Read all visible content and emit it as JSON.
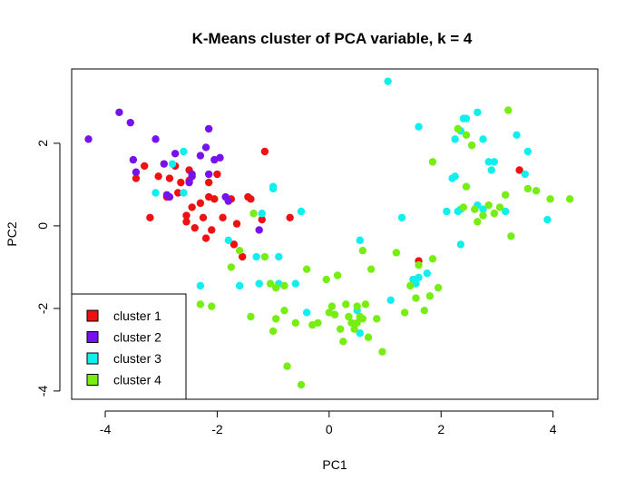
{
  "chart_data": {
    "type": "scatter",
    "title": "K-Means cluster of PCA variable, k = 4",
    "xlabel": "PC1",
    "ylabel": "PC2",
    "xlim": [
      -4.6,
      4.8
    ],
    "ylim": [
      -4.2,
      3.8
    ],
    "xticks": [
      -4,
      -2,
      0,
      2,
      4
    ],
    "yticks": [
      -4,
      -2,
      0,
      2
    ],
    "grid": false,
    "legend": "bottom-left",
    "series": [
      {
        "name": "cluster 1",
        "color": "#ee1111",
        "points": [
          [
            -3.45,
            1.15
          ],
          [
            -3.3,
            1.45
          ],
          [
            -3.2,
            0.2
          ],
          [
            -3.05,
            1.2
          ],
          [
            -2.9,
            0.7
          ],
          [
            -2.85,
            1.15
          ],
          [
            -2.75,
            1.45
          ],
          [
            -2.7,
            0.8
          ],
          [
            -2.65,
            1.05
          ],
          [
            -2.55,
            0.25
          ],
          [
            -2.55,
            0.1
          ],
          [
            -2.5,
            1.1
          ],
          [
            -2.5,
            1.35
          ],
          [
            -2.45,
            0.45
          ],
          [
            -2.4,
            -0.05
          ],
          [
            -2.3,
            0.55
          ],
          [
            -2.25,
            0.2
          ],
          [
            -2.2,
            -0.3
          ],
          [
            -2.15,
            0.7
          ],
          [
            -2.15,
            1.05
          ],
          [
            -2.1,
            -0.1
          ],
          [
            -2.05,
            0.65
          ],
          [
            -2.0,
            1.25
          ],
          [
            -1.9,
            0.2
          ],
          [
            -1.75,
            0.65
          ],
          [
            -1.7,
            -0.45
          ],
          [
            -1.65,
            0.05
          ],
          [
            -1.55,
            -0.75
          ],
          [
            -1.45,
            0.7
          ],
          [
            -1.4,
            0.65
          ],
          [
            -1.2,
            0.15
          ],
          [
            -1.15,
            1.8
          ],
          [
            -0.7,
            0.2
          ],
          [
            1.6,
            -0.85
          ],
          [
            3.4,
            1.35
          ]
        ]
      },
      {
        "name": "cluster 2",
        "color": "#7711ee",
        "points": [
          [
            -4.3,
            2.1
          ],
          [
            -3.75,
            2.75
          ],
          [
            -3.55,
            2.5
          ],
          [
            -3.5,
            1.6
          ],
          [
            -3.45,
            1.3
          ],
          [
            -3.1,
            2.1
          ],
          [
            -2.95,
            1.5
          ],
          [
            -2.9,
            0.75
          ],
          [
            -2.85,
            0.7
          ],
          [
            -2.75,
            1.75
          ],
          [
            -2.5,
            1.05
          ],
          [
            -2.45,
            1.25
          ],
          [
            -2.45,
            1.2
          ],
          [
            -2.3,
            1.7
          ],
          [
            -2.2,
            1.9
          ],
          [
            -2.15,
            2.35
          ],
          [
            -2.15,
            1.25
          ],
          [
            -2.05,
            1.6
          ],
          [
            -1.95,
            1.65
          ],
          [
            -1.85,
            0.7
          ],
          [
            -1.8,
            0.6
          ],
          [
            -1.25,
            -0.1
          ]
        ]
      },
      {
        "name": "cluster 3",
        "color": "#11eeee",
        "points": [
          [
            -3.1,
            0.8
          ],
          [
            -2.8,
            1.5
          ],
          [
            -2.6,
            1.8
          ],
          [
            -2.6,
            0.8
          ],
          [
            -2.3,
            -1.45
          ],
          [
            -1.8,
            -0.35
          ],
          [
            -1.6,
            -1.45
          ],
          [
            -1.3,
            -0.75
          ],
          [
            -1.25,
            -1.4
          ],
          [
            -1.2,
            0.3
          ],
          [
            -1.0,
            0.9
          ],
          [
            -1.0,
            0.95
          ],
          [
            -0.9,
            -0.75
          ],
          [
            -0.9,
            -1.4
          ],
          [
            -0.6,
            -1.4
          ],
          [
            -0.5,
            0.35
          ],
          [
            -0.4,
            -2.1
          ],
          [
            0.5,
            -2.05
          ],
          [
            0.55,
            -2.6
          ],
          [
            0.55,
            -0.35
          ],
          [
            1.05,
            3.5
          ],
          [
            1.1,
            -1.8
          ],
          [
            1.3,
            0.2
          ],
          [
            1.5,
            -1.3
          ],
          [
            1.55,
            -1.4
          ],
          [
            1.6,
            -1.25
          ],
          [
            1.6,
            2.4
          ],
          [
            1.75,
            -1.15
          ],
          [
            2.1,
            0.35
          ],
          [
            2.2,
            1.15
          ],
          [
            2.25,
            2.1
          ],
          [
            2.25,
            1.2
          ],
          [
            2.3,
            0.35
          ],
          [
            2.35,
            2.3
          ],
          [
            2.35,
            0.4
          ],
          [
            2.35,
            -0.45
          ],
          [
            2.4,
            2.6
          ],
          [
            2.45,
            2.6
          ],
          [
            2.55,
            1.95
          ],
          [
            2.65,
            0.5
          ],
          [
            2.65,
            2.75
          ],
          [
            2.75,
            0.4
          ],
          [
            2.75,
            2.1
          ],
          [
            2.85,
            1.55
          ],
          [
            2.9,
            1.35
          ],
          [
            2.95,
            1.55
          ],
          [
            3.15,
            0.35
          ],
          [
            3.35,
            2.2
          ],
          [
            3.5,
            1.25
          ],
          [
            3.55,
            1.8
          ],
          [
            3.9,
            0.15
          ]
        ]
      },
      {
        "name": "cluster 4",
        "color": "#77ee11",
        "points": [
          [
            -2.3,
            -1.9
          ],
          [
            -2.1,
            -1.95
          ],
          [
            -1.75,
            -1.0
          ],
          [
            -1.6,
            -0.6
          ],
          [
            -1.4,
            -2.2
          ],
          [
            -1.35,
            0.3
          ],
          [
            -1.15,
            -0.75
          ],
          [
            -1.05,
            -1.4
          ],
          [
            -1.0,
            -2.55
          ],
          [
            -0.95,
            -1.5
          ],
          [
            -0.95,
            -2.25
          ],
          [
            -0.8,
            -2.05
          ],
          [
            -0.8,
            -1.45
          ],
          [
            -0.75,
            -3.4
          ],
          [
            -0.6,
            -2.35
          ],
          [
            -0.5,
            -3.85
          ],
          [
            -0.4,
            -1.05
          ],
          [
            -0.3,
            -2.4
          ],
          [
            -0.2,
            -2.35
          ],
          [
            -0.05,
            -1.3
          ],
          [
            0.0,
            -2.1
          ],
          [
            0.05,
            -1.95
          ],
          [
            0.1,
            -2.15
          ],
          [
            0.15,
            -1.2
          ],
          [
            0.2,
            -2.5
          ],
          [
            0.25,
            -2.8
          ],
          [
            0.3,
            -1.9
          ],
          [
            0.35,
            -2.2
          ],
          [
            0.4,
            -2.35
          ],
          [
            0.45,
            -2.5
          ],
          [
            0.5,
            -1.95
          ],
          [
            0.5,
            -2.35
          ],
          [
            0.55,
            -2.2
          ],
          [
            0.6,
            -2.25
          ],
          [
            0.6,
            -0.6
          ],
          [
            0.65,
            -1.9
          ],
          [
            0.7,
            -2.7
          ],
          [
            0.75,
            -1.05
          ],
          [
            0.85,
            -2.25
          ],
          [
            0.95,
            -3.05
          ],
          [
            1.2,
            -0.65
          ],
          [
            1.35,
            -2.1
          ],
          [
            1.45,
            -1.45
          ],
          [
            1.55,
            -1.75
          ],
          [
            1.6,
            -0.95
          ],
          [
            1.7,
            -2.05
          ],
          [
            1.8,
            -1.7
          ],
          [
            1.85,
            -0.8
          ],
          [
            1.85,
            1.55
          ],
          [
            1.95,
            -1.5
          ],
          [
            2.3,
            2.35
          ],
          [
            2.4,
            0.45
          ],
          [
            2.45,
            0.95
          ],
          [
            2.45,
            2.2
          ],
          [
            2.55,
            1.95
          ],
          [
            2.6,
            0.4
          ],
          [
            2.65,
            0.1
          ],
          [
            2.75,
            0.25
          ],
          [
            2.85,
            0.5
          ],
          [
            2.95,
            0.3
          ],
          [
            3.05,
            0.45
          ],
          [
            3.15,
            0.75
          ],
          [
            3.2,
            2.8
          ],
          [
            3.25,
            -0.25
          ],
          [
            3.55,
            0.9
          ],
          [
            3.7,
            0.85
          ],
          [
            3.95,
            0.65
          ],
          [
            4.3,
            0.65
          ]
        ]
      }
    ]
  }
}
